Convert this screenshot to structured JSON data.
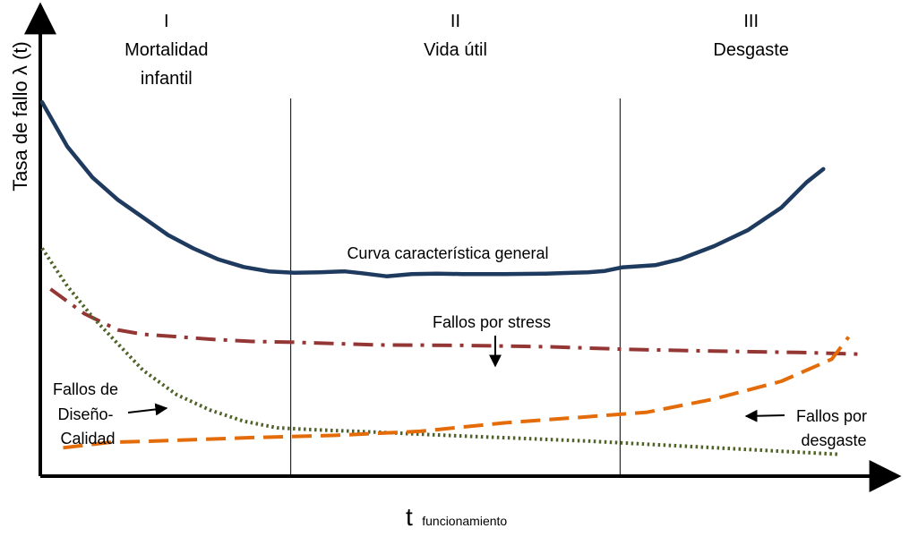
{
  "chart_data": {
    "type": "line",
    "ylabel": "Tasa de fallo λ (t)",
    "xlabel_main": "t",
    "xlabel_sub": "funcionamiento",
    "xlim": [
      0,
      100
    ],
    "ylim": [
      0,
      100
    ],
    "phases": [
      {
        "numeral": "I",
        "name_lines": [
          "Mortalidad",
          "infantil"
        ],
        "x_start": 0,
        "x_end": 29.6
      },
      {
        "numeral": "II",
        "name_lines": [
          "Vida útil"
        ],
        "x_start": 29.6,
        "x_end": 68.8
      },
      {
        "numeral": "III",
        "name_lines": [
          "Desgaste"
        ],
        "x_start": 68.8,
        "x_end": 100
      }
    ],
    "dividers_x": [
      29.6,
      68.8
    ],
    "series": [
      {
        "key": "general",
        "color": "#1f3a5f",
        "dash": "solid",
        "points": [
          [
            0,
            83
          ],
          [
            3,
            73
          ],
          [
            6,
            66
          ],
          [
            9,
            61
          ],
          [
            12,
            57
          ],
          [
            15,
            53
          ],
          [
            18,
            50
          ],
          [
            21,
            47.5
          ],
          [
            24,
            45.8
          ],
          [
            27,
            44.8
          ],
          [
            30,
            44.5
          ],
          [
            33,
            44.6
          ],
          [
            36,
            44.8
          ],
          [
            38,
            44.4
          ],
          [
            41,
            43.7
          ],
          [
            44,
            44.2
          ],
          [
            47,
            44.3
          ],
          [
            50,
            44.2
          ],
          [
            55,
            44.2
          ],
          [
            60,
            44.3
          ],
          [
            65,
            44.6
          ],
          [
            67,
            44.9
          ],
          [
            69,
            45.7
          ],
          [
            73,
            46.2
          ],
          [
            76,
            47.6
          ],
          [
            80,
            50.5
          ],
          [
            84,
            54.1
          ],
          [
            88,
            59.2
          ],
          [
            91,
            64.9
          ],
          [
            93,
            67.9
          ]
        ]
      },
      {
        "key": "stress",
        "color": "#943634",
        "dash": "dashdot",
        "points": [
          [
            1,
            40.8
          ],
          [
            5,
            35.3
          ],
          [
            9,
            31.6
          ],
          [
            12,
            30.6
          ],
          [
            15,
            30.2
          ],
          [
            20,
            29.5
          ],
          [
            25,
            29.0
          ],
          [
            30,
            28.8
          ],
          [
            40,
            28.2
          ],
          [
            50,
            28.1
          ],
          [
            60,
            27.8
          ],
          [
            70,
            27.2
          ],
          [
            80,
            26.8
          ],
          [
            90,
            26.5
          ],
          [
            98,
            26.1
          ]
        ]
      },
      {
        "key": "diseno",
        "color": "#4f6228",
        "dash": "dotted",
        "points": [
          [
            0,
            50
          ],
          [
            3,
            41.5
          ],
          [
            6,
            34.5
          ],
          [
            9,
            28.5
          ],
          [
            12,
            22.5
          ],
          [
            16,
            17
          ],
          [
            20,
            13.5
          ],
          [
            24,
            11
          ],
          [
            28,
            9.5
          ],
          [
            33,
            9
          ],
          [
            40,
            8.5
          ],
          [
            48,
            7.8
          ],
          [
            56,
            7.2
          ],
          [
            65,
            6.5
          ],
          [
            75,
            5.5
          ],
          [
            85,
            4.5
          ],
          [
            95,
            3.5
          ]
        ]
      },
      {
        "key": "desgaste",
        "color": "#e36c09",
        "dash": "dashed",
        "points": [
          [
            2.5,
            5
          ],
          [
            8,
            6.2
          ],
          [
            15,
            6.6
          ],
          [
            25,
            7.3
          ],
          [
            35,
            7.8
          ],
          [
            45,
            8.7
          ],
          [
            55,
            10.6
          ],
          [
            65,
            12
          ],
          [
            72,
            13
          ],
          [
            80,
            16
          ],
          [
            88,
            20
          ],
          [
            94,
            25
          ],
          [
            96,
            30
          ]
        ]
      }
    ],
    "annotations": {
      "general_label": "Curva característica general",
      "stress_label": "Fallos por stress",
      "diseno_lines": [
        "Fallos de",
        "Diseño-",
        "Calidad"
      ],
      "desgaste_lines": [
        "Fallos por",
        "desgaste"
      ]
    }
  }
}
